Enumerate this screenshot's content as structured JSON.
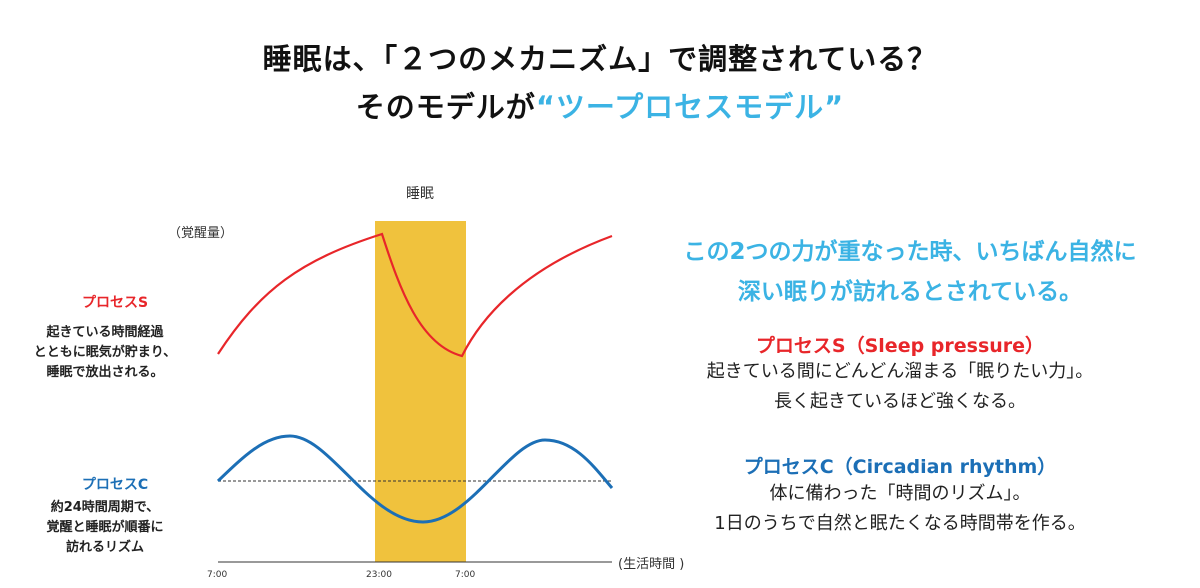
{
  "title": {
    "line1": "睡眠は、「２つのメカニズム」で調整されている？",
    "line2_prefix": "そのモデルが",
    "line2_highlight": "“ツープロセスモデル”"
  },
  "chart": {
    "sleep_label": "睡眠",
    "y_unit": "（覚醒量）",
    "x_unit": "(生活時間 )",
    "ticks": [
      "7:00",
      "23:00",
      "7:00"
    ],
    "colors": {
      "process_s": "#e8262a",
      "process_c": "#1c6fb6",
      "sleep_band": "#f0c23d",
      "axis": "#333333"
    }
  },
  "left": {
    "process_s_label": "プロセスS",
    "process_s_desc": [
      "起きている時間経過",
      "とともに眠気が貯まり、",
      "睡眠で放出される。"
    ],
    "process_c_label": "プロセスC",
    "process_c_desc": [
      "約24時間周期で、",
      "覚醒と睡眠が順番に",
      "訪れるリズム"
    ]
  },
  "right": {
    "highlight": [
      "この2つの力が重なった時、いちばん自然に",
      "深い眠りが訪れるとされている。"
    ],
    "process_s_head": "プロセスS（Sleep pressure）",
    "process_s_body": [
      "起きている間にどんどん溜まる「眠りたい力」。",
      "長く起きているほど強くなる。"
    ],
    "process_c_head": "プロセスC（Circadian rhythm）",
    "process_c_body": [
      "体に備わった「時間のリズム」。",
      "1日のうちで自然と眠たくなる時間帯を作る。"
    ]
  }
}
